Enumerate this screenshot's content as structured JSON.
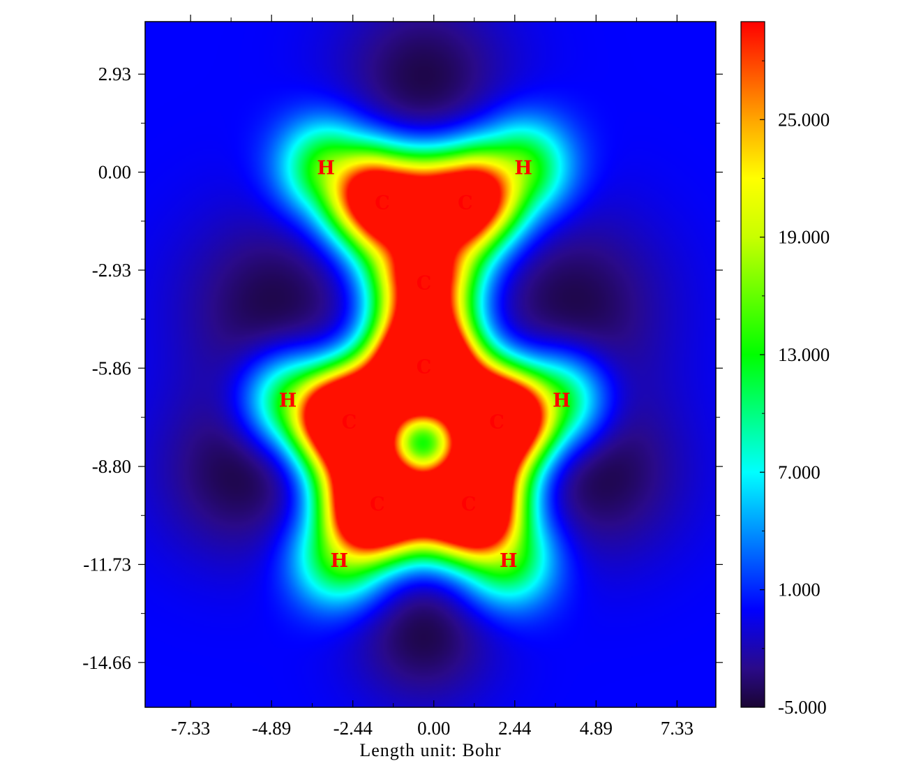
{
  "chart_data": {
    "type": "heatmap",
    "title": "",
    "xlabel": "Length unit: Bohr",
    "ylabel": "",
    "xlim": [
      -8.7,
      8.5
    ],
    "ylim": [
      -16.0,
      4.5
    ],
    "x_ticks": [
      -7.33,
      -4.89,
      -2.44,
      0.0,
      2.44,
      4.89,
      7.33
    ],
    "x_tick_labels": [
      "-7.33",
      "-4.89",
      "-2.44",
      "0.00",
      "2.44",
      "4.89",
      "7.33"
    ],
    "y_ticks": [
      2.93,
      0.0,
      -2.93,
      -5.86,
      -8.8,
      -11.73,
      -14.66
    ],
    "y_tick_labels": [
      "2.93",
      "0.00",
      "-2.93",
      "-5.86",
      "-8.80",
      "-11.73",
      "-14.66"
    ],
    "colorbar": {
      "range": [
        -5.0,
        30.0
      ],
      "ticks": [
        25.0,
        19.0,
        13.0,
        7.0,
        1.0,
        -5.0
      ],
      "tick_labels": [
        "25.000",
        "19.000",
        "13.000",
        "7.000",
        "1.000",
        "-5.000"
      ],
      "colors": [
        {
          "value": -5.0,
          "color": "#1a0533"
        },
        {
          "value": -3.0,
          "color": "#2a0a8a"
        },
        {
          "value": 0.0,
          "color": "#0000ff"
        },
        {
          "value": 7.0,
          "color": "#00ffff"
        },
        {
          "value": 13.0,
          "color": "#00ff00"
        },
        {
          "value": 19.0,
          "color": "#c8ff00"
        },
        {
          "value": 22.0,
          "color": "#ffff00"
        },
        {
          "value": 25.0,
          "color": "#ffa500"
        },
        {
          "value": 30.0,
          "color": "#ff0000"
        }
      ]
    },
    "atoms": [
      {
        "symbol": "H",
        "x": -3.25,
        "y": 0.15
      },
      {
        "symbol": "H",
        "x": 2.7,
        "y": 0.15
      },
      {
        "symbol": "C",
        "x": -1.55,
        "y": -0.9
      },
      {
        "symbol": "C",
        "x": 0.95,
        "y": -0.9
      },
      {
        "symbol": "C",
        "x": -0.3,
        "y": -3.3
      },
      {
        "symbol": "C",
        "x": -0.3,
        "y": -5.8
      },
      {
        "symbol": "H",
        "x": -4.4,
        "y": -6.8
      },
      {
        "symbol": "H",
        "x": 3.85,
        "y": -6.8
      },
      {
        "symbol": "C",
        "x": -2.55,
        "y": -7.45
      },
      {
        "symbol": "C",
        "x": 1.9,
        "y": -7.45
      },
      {
        "symbol": "C",
        "x": -1.7,
        "y": -9.9
      },
      {
        "symbol": "C",
        "x": 1.05,
        "y": -9.9
      },
      {
        "symbol": "H",
        "x": -2.85,
        "y": -11.6
      },
      {
        "symbol": "H",
        "x": 2.25,
        "y": -11.6
      }
    ]
  }
}
